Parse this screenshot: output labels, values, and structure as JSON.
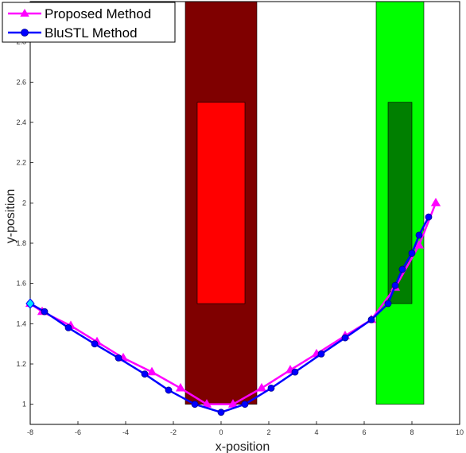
{
  "chart_data": {
    "type": "line",
    "xlabel": "x-position",
    "ylabel": "y-position",
    "xlim": [
      -8,
      10
    ],
    "ylim": [
      0.9,
      3.0
    ],
    "x_ticks": [
      "-8",
      "-6",
      "-4",
      "-2",
      "0",
      "2",
      "4",
      "6",
      "8",
      "10"
    ],
    "y_ticks": [
      "1",
      "1.2",
      "1.4",
      "1.6",
      "1.8",
      "2",
      "2.2",
      "2.4",
      "2.6",
      "2.8"
    ],
    "grid": false,
    "legend_position": "top-left",
    "regions": [
      {
        "name": "avoid-region-outer",
        "x": [
          -1.5,
          1.5
        ],
        "y": [
          1.0,
          3.0
        ],
        "color": "#7f0000"
      },
      {
        "name": "avoid-region-inner",
        "x": [
          -1.0,
          1.0
        ],
        "y": [
          1.5,
          2.5
        ],
        "color": "#ff0000"
      },
      {
        "name": "goal-region-outer",
        "x": [
          6.5,
          8.5
        ],
        "y": [
          1.0,
          3.0
        ],
        "color": "#00ff00"
      },
      {
        "name": "goal-region-inner",
        "x": [
          7.0,
          8.0
        ],
        "y": [
          1.5,
          2.5
        ],
        "color": "#007f00"
      }
    ],
    "start_point": {
      "x": -8,
      "y": 1.5,
      "color": "#00e5ff"
    },
    "series": [
      {
        "name": "Proposed Method",
        "color": "#ff00ff",
        "marker": "triangle",
        "x": [
          -8,
          -7.5,
          -6.3,
          -5.2,
          -4.1,
          -2.9,
          -1.7,
          -0.6,
          0.5,
          1.7,
          2.9,
          4.0,
          5.2,
          6.3,
          7.3,
          8.3,
          9.0
        ],
        "y": [
          1.5,
          1.46,
          1.39,
          1.31,
          1.23,
          1.16,
          1.08,
          1.0,
          1.0,
          1.08,
          1.17,
          1.25,
          1.34,
          1.42,
          1.58,
          1.79,
          2.0
        ]
      },
      {
        "name": "BluSTL Method",
        "color": "#0000ff",
        "marker": "circle",
        "x": [
          -8,
          -7.4,
          -6.4,
          -5.3,
          -4.3,
          -3.2,
          -2.2,
          -1.1,
          0.0,
          1.0,
          2.1,
          3.1,
          4.2,
          5.2,
          6.3,
          7.0,
          7.3,
          7.6,
          8.0,
          8.3,
          8.7
        ],
        "y": [
          1.5,
          1.46,
          1.38,
          1.3,
          1.23,
          1.15,
          1.07,
          1.0,
          0.96,
          1.0,
          1.08,
          1.16,
          1.25,
          1.33,
          1.42,
          1.5,
          1.59,
          1.67,
          1.75,
          1.84,
          1.93
        ]
      }
    ]
  }
}
